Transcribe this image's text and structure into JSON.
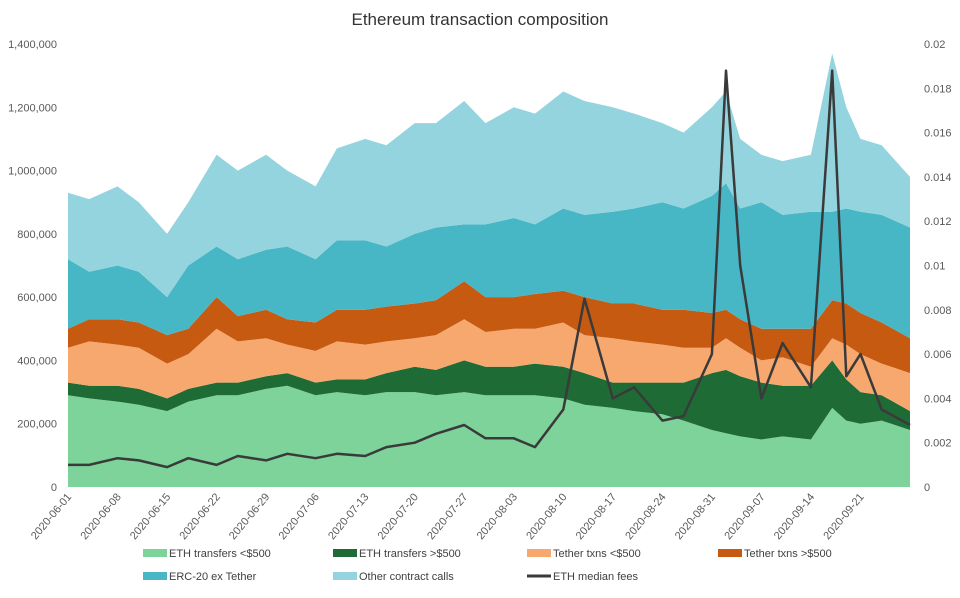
{
  "chart_data": {
    "type": "area",
    "stacked": true,
    "title": "Ethereum transaction composition",
    "x": [
      "2020-06-01",
      "2020-06-04",
      "2020-06-08",
      "2020-06-11",
      "2020-06-15",
      "2020-06-18",
      "2020-06-22",
      "2020-06-25",
      "2020-06-29",
      "2020-07-02",
      "2020-07-06",
      "2020-07-09",
      "2020-07-13",
      "2020-07-16",
      "2020-07-20",
      "2020-07-23",
      "2020-07-27",
      "2020-07-30",
      "2020-08-03",
      "2020-08-06",
      "2020-08-10",
      "2020-08-13",
      "2020-08-17",
      "2020-08-20",
      "2020-08-24",
      "2020-08-27",
      "2020-08-31",
      "2020-09-02",
      "2020-09-04",
      "2020-09-07",
      "2020-09-10",
      "2020-09-14",
      "2020-09-17",
      "2020-09-19",
      "2020-09-21",
      "2020-09-24",
      "2020-09-28"
    ],
    "x_ticks": [
      "2020-06-01",
      "2020-06-08",
      "2020-06-15",
      "2020-06-22",
      "2020-06-29",
      "2020-07-06",
      "2020-07-13",
      "2020-07-20",
      "2020-07-27",
      "2020-08-03",
      "2020-08-10",
      "2020-08-17",
      "2020-08-24",
      "2020-08-31",
      "2020-09-07",
      "2020-09-14",
      "2020-09-21"
    ],
    "y_left": {
      "range": [
        0,
        1400000
      ],
      "ticks": [
        "0",
        "200,000",
        "400,000",
        "600,000",
        "800,000",
        "1,000,000",
        "1,200,000",
        "1,400,000"
      ]
    },
    "y_right": {
      "range": [
        0,
        0.02
      ],
      "ticks": [
        "0",
        "0.002",
        "0.004",
        "0.006",
        "0.008",
        "0.01",
        "0.012",
        "0.014",
        "0.016",
        "0.018",
        "0.02"
      ]
    },
    "grid": false,
    "legend_placement": "bottom",
    "series": [
      {
        "name": "ETH transfers <$500",
        "color": "#7dd39a",
        "axis": "left",
        "values": [
          290000,
          280000,
          270000,
          260000,
          240000,
          270000,
          290000,
          290000,
          310000,
          320000,
          290000,
          300000,
          290000,
          300000,
          300000,
          290000,
          300000,
          290000,
          290000,
          290000,
          280000,
          260000,
          250000,
          240000,
          230000,
          210000,
          180000,
          170000,
          160000,
          150000,
          160000,
          150000,
          250000,
          210000,
          200000,
          210000,
          180000
        ]
      },
      {
        "name": "ETH transfers >$500",
        "color": "#1f6b35",
        "axis": "left",
        "values": [
          40000,
          40000,
          50000,
          50000,
          40000,
          40000,
          40000,
          40000,
          40000,
          40000,
          40000,
          40000,
          50000,
          60000,
          80000,
          80000,
          100000,
          90000,
          90000,
          100000,
          100000,
          100000,
          80000,
          90000,
          100000,
          120000,
          180000,
          200000,
          190000,
          180000,
          160000,
          170000,
          150000,
          130000,
          100000,
          80000,
          60000
        ]
      },
      {
        "name": "Tether txns <$500",
        "color": "#f7a86e",
        "axis": "left",
        "values": [
          110000,
          140000,
          130000,
          130000,
          110000,
          110000,
          170000,
          130000,
          120000,
          90000,
          100000,
          120000,
          110000,
          100000,
          90000,
          110000,
          130000,
          110000,
          120000,
          110000,
          140000,
          120000,
          140000,
          130000,
          120000,
          110000,
          80000,
          100000,
          90000,
          70000,
          90000,
          60000,
          70000,
          110000,
          120000,
          100000,
          120000
        ]
      },
      {
        "name": "Tether txns >$500",
        "color": "#c65a11",
        "axis": "left",
        "values": [
          60000,
          70000,
          80000,
          80000,
          90000,
          80000,
          100000,
          80000,
          90000,
          80000,
          90000,
          100000,
          110000,
          110000,
          110000,
          110000,
          120000,
          110000,
          100000,
          110000,
          100000,
          120000,
          110000,
          120000,
          110000,
          120000,
          110000,
          90000,
          90000,
          100000,
          90000,
          120000,
          120000,
          130000,
          130000,
          130000,
          110000
        ]
      },
      {
        "name": "ERC-20 ex Tether",
        "color": "#47b7c6",
        "axis": "left",
        "values": [
          220000,
          150000,
          170000,
          160000,
          120000,
          200000,
          160000,
          180000,
          190000,
          230000,
          200000,
          220000,
          220000,
          190000,
          220000,
          230000,
          180000,
          230000,
          250000,
          220000,
          260000,
          260000,
          290000,
          300000,
          340000,
          320000,
          370000,
          400000,
          350000,
          400000,
          360000,
          370000,
          280000,
          300000,
          320000,
          340000,
          350000
        ]
      },
      {
        "name": "Other contract calls",
        "color": "#94d4de",
        "axis": "left",
        "values": [
          210000,
          230000,
          250000,
          220000,
          200000,
          200000,
          290000,
          280000,
          300000,
          240000,
          230000,
          290000,
          320000,
          320000,
          350000,
          330000,
          390000,
          320000,
          350000,
          350000,
          370000,
          360000,
          330000,
          300000,
          250000,
          240000,
          280000,
          290000,
          220000,
          150000,
          170000,
          180000,
          500000,
          320000,
          230000,
          220000,
          160000
        ]
      },
      {
        "name": "ETH median fees",
        "color": "#3a3a3a",
        "axis": "right",
        "type": "line",
        "values": [
          0.001,
          0.001,
          0.0013,
          0.0012,
          0.0009,
          0.0013,
          0.001,
          0.0014,
          0.0012,
          0.0015,
          0.0013,
          0.0015,
          0.0014,
          0.0018,
          0.002,
          0.0024,
          0.0028,
          0.0022,
          0.0022,
          0.0018,
          0.0035,
          0.0085,
          0.004,
          0.0045,
          0.003,
          0.0032,
          0.006,
          0.0188,
          0.01,
          0.004,
          0.0065,
          0.0045,
          0.0188,
          0.005,
          0.006,
          0.0035,
          0.0028
        ]
      }
    ]
  }
}
